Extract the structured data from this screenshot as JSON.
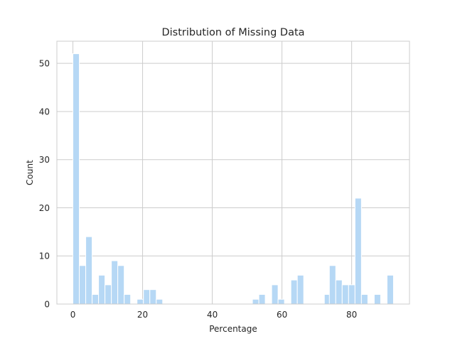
{
  "chart_data": {
    "type": "bar",
    "title": "Distribution of Missing Data",
    "xlabel": "Percentage",
    "ylabel": "Count",
    "xlim": [
      -4.6,
      96.6
    ],
    "ylim": [
      0,
      54.6
    ],
    "xticks": [
      0,
      20,
      40,
      60,
      80
    ],
    "yticks": [
      0,
      10,
      20,
      30,
      40,
      50
    ],
    "grid": true,
    "bar_color": "#b6d8f5",
    "grid_color": "#cccccc",
    "bin_width": 1.84,
    "bins": [
      {
        "x": 0.0,
        "count": 52
      },
      {
        "x": 1.84,
        "count": 8
      },
      {
        "x": 3.68,
        "count": 14
      },
      {
        "x": 5.52,
        "count": 2
      },
      {
        "x": 7.36,
        "count": 6
      },
      {
        "x": 9.2,
        "count": 4
      },
      {
        "x": 11.04,
        "count": 9
      },
      {
        "x": 12.88,
        "count": 8
      },
      {
        "x": 14.72,
        "count": 2
      },
      {
        "x": 18.4,
        "count": 1
      },
      {
        "x": 20.24,
        "count": 3
      },
      {
        "x": 22.08,
        "count": 3
      },
      {
        "x": 23.92,
        "count": 1
      },
      {
        "x": 51.52,
        "count": 1
      },
      {
        "x": 53.36,
        "count": 2
      },
      {
        "x": 57.04,
        "count": 4
      },
      {
        "x": 58.88,
        "count": 1
      },
      {
        "x": 62.56,
        "count": 5
      },
      {
        "x": 64.4,
        "count": 6
      },
      {
        "x": 72.16,
        "count": 2
      },
      {
        "x": 73.6,
        "count": 8
      },
      {
        "x": 75.44,
        "count": 5
      },
      {
        "x": 77.28,
        "count": 4
      },
      {
        "x": 79.12,
        "count": 4
      },
      {
        "x": 80.96,
        "count": 22
      },
      {
        "x": 82.8,
        "count": 2
      },
      {
        "x": 86.48,
        "count": 2
      },
      {
        "x": 90.16,
        "count": 6
      }
    ]
  }
}
